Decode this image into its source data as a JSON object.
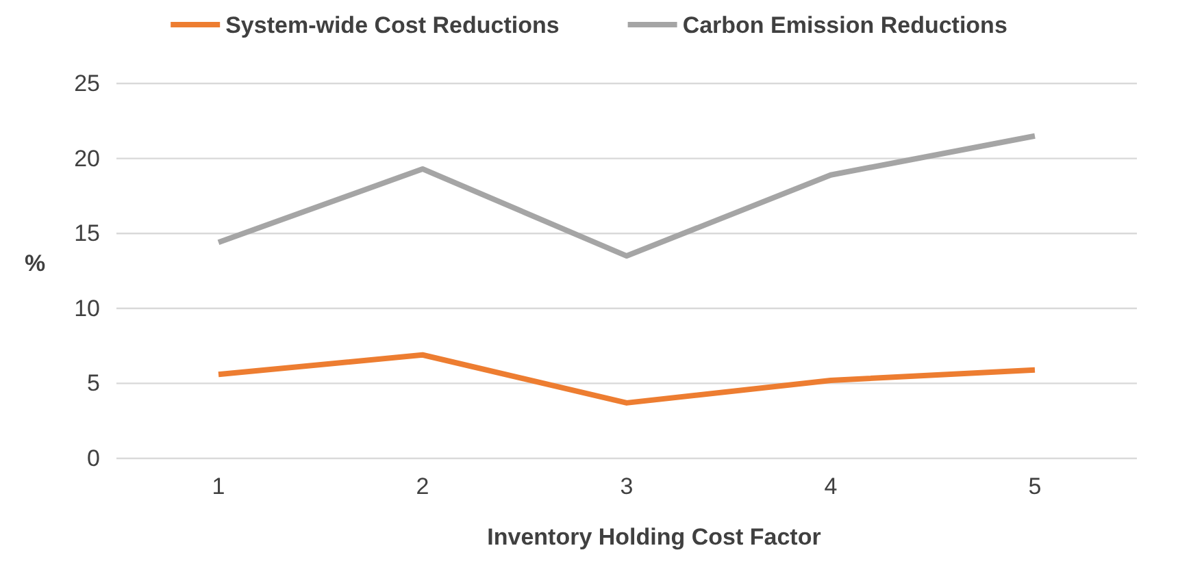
{
  "chart_data": {
    "type": "line",
    "categories": [
      "1",
      "2",
      "3",
      "4",
      "5"
    ],
    "xlabel": "Inventory Holding Cost Factor",
    "ylabel": "%",
    "ylim": [
      0,
      25
    ],
    "yticks": [
      0,
      5,
      10,
      15,
      20,
      25
    ],
    "grid": "y",
    "legend": "top",
    "series": [
      {
        "name": "System-wide Cost Reductions",
        "color": "#ed7d31",
        "values": [
          5.6,
          6.9,
          3.7,
          5.2,
          5.9
        ]
      },
      {
        "name": "Carbon Emission Reductions",
        "color": "#a5a5a5",
        "values": [
          14.4,
          19.3,
          13.5,
          18.9,
          21.5
        ]
      }
    ]
  }
}
